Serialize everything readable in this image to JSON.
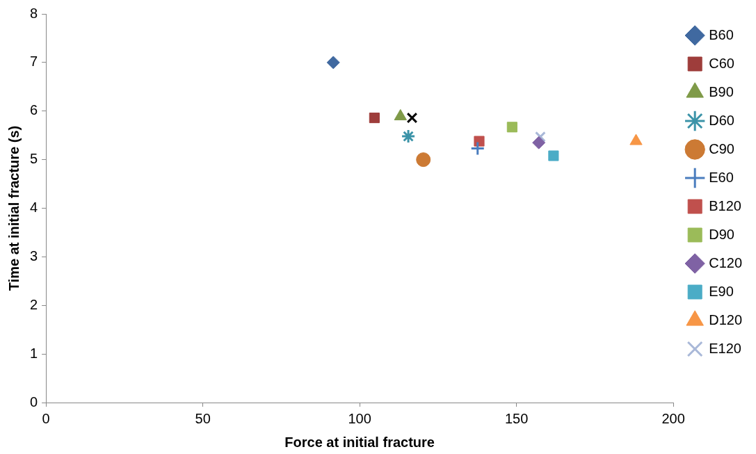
{
  "chart_data": {
    "type": "scatter",
    "xlabel": "Force at initial fracture",
    "ylabel": "Time at initial fracture (s)",
    "xlim": [
      0,
      200
    ],
    "xticks": [
      0,
      50,
      100,
      150,
      200
    ],
    "ylim": [
      0,
      8
    ],
    "yticks": [
      0,
      1,
      2,
      3,
      4,
      5,
      6,
      7,
      8
    ],
    "grid": false,
    "legend": "right",
    "series": [
      {
        "name": "B60",
        "color": "#4069a0",
        "marker": "diamond",
        "x": [
          91.6
        ],
        "values": [
          7.0
        ]
      },
      {
        "name": "C60",
        "color": "#9e3d3b",
        "marker": "square",
        "x": [
          104.7
        ],
        "values": [
          5.86
        ]
      },
      {
        "name": "B90",
        "color": "#7f9a48",
        "marker": "triangle",
        "x": [
          113.0
        ],
        "values": [
          5.89
        ]
      },
      {
        "color": "#000000",
        "marker": "cross",
        "x": [
          116.7
        ],
        "values": [
          5.86
        ]
      },
      {
        "name": "D60",
        "color": "#3b93a8",
        "x": [
          115.5
        ],
        "values": [
          5.48
        ]
      },
      {
        "name": "C90",
        "color": "#cc7a34",
        "marker": "circle",
        "x": [
          120.3
        ],
        "values": [
          5.0
        ]
      },
      {
        "name": "E60",
        "color": "#4a7dbe",
        "marker": "plus",
        "x": [
          137.6
        ],
        "values": [
          5.23
        ]
      },
      {
        "name": "B120",
        "color": "#c0504d",
        "marker": "square",
        "x": [
          138.1
        ],
        "values": [
          5.38
        ]
      },
      {
        "name": "D90",
        "color": "#9bbb59",
        "marker": "square",
        "x": [
          148.6
        ],
        "values": [
          5.67
        ]
      },
      {
        "name": "C120",
        "color": "#7f62a4",
        "marker": "diamond",
        "x": [
          157.1
        ],
        "values": [
          5.35
        ]
      },
      {
        "name": "E90",
        "color": "#4bacc6",
        "marker": "square",
        "x": [
          161.8
        ],
        "values": [
          5.08
        ]
      },
      {
        "name": "D120",
        "color": "#f79646",
        "marker": "triangle",
        "x": [
          188.1
        ],
        "values": [
          5.38
        ]
      },
      {
        "name": "E120",
        "color": "#a9b8d8",
        "marker": "cross",
        "x": [
          157.6
        ],
        "values": [
          5.47
        ]
      }
    ]
  }
}
